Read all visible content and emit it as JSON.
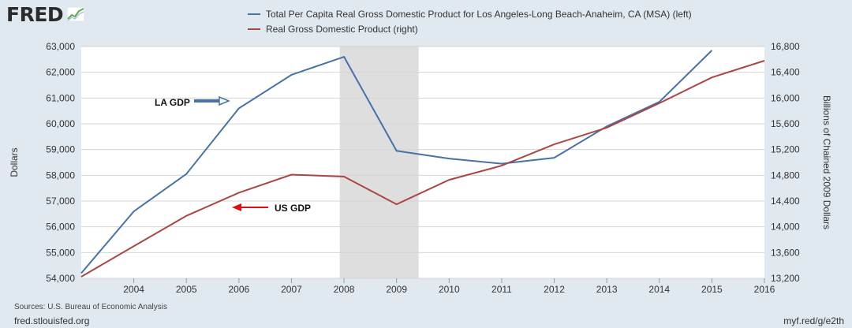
{
  "header": {
    "logo": "FRED",
    "legend": [
      {
        "label": "Total Per Capita Real Gross Domestic Product for Los Angeles-Long Beach-Anaheim, CA (MSA) (left)",
        "color": "#4572a7"
      },
      {
        "label": "Real Gross Domestic Product (right)",
        "color": "#aa4643"
      }
    ]
  },
  "footer": {
    "source": "Sources: U.S. Bureau of Economic Analysis",
    "site": "fred.stlouisfed.org",
    "short_url": "myf.red/g/e2th"
  },
  "chart_data": {
    "type": "line",
    "title": "",
    "x": [
      2003,
      2004,
      2005,
      2006,
      2007,
      2008,
      2009,
      2010,
      2011,
      2012,
      2013,
      2014,
      2015,
      2016
    ],
    "xlim": [
      2003,
      2016
    ],
    "x_ticks": [
      "2004",
      "2005",
      "2006",
      "2007",
      "2008",
      "2009",
      "2010",
      "2011",
      "2012",
      "2013",
      "2014",
      "2015",
      "2016"
    ],
    "xlabel": "",
    "ylabel_left": "Dollars",
    "ylabel_right": "Billions of Chained 2009 Dollars",
    "ylim_left": [
      54000,
      63000
    ],
    "ylim_right": [
      13200,
      16800
    ],
    "y_ticks_left": [
      "54,000",
      "55,000",
      "56,000",
      "57,000",
      "58,000",
      "59,000",
      "60,000",
      "61,000",
      "62,000",
      "63,000"
    ],
    "y_ticks_right": [
      "13,200",
      "13,600",
      "14,000",
      "14,400",
      "14,800",
      "15,200",
      "15,600",
      "16,000",
      "16,400",
      "16,800"
    ],
    "recession": {
      "from": 2007.92,
      "to": 2009.42
    },
    "series": [
      {
        "name": "Total Per Capita Real Gross Domestic Product for Los Angeles-Long Beach-Anaheim, CA (MSA)",
        "axis": "left",
        "color": "#4572a7",
        "x": [
          2003,
          2004,
          2005,
          2006,
          2007,
          2008,
          2009,
          2010,
          2011,
          2012,
          2013,
          2014,
          2015
        ],
        "values": [
          54200,
          56600,
          58050,
          60600,
          61900,
          62600,
          58950,
          58650,
          58450,
          58680,
          59900,
          60850,
          62850
        ]
      },
      {
        "name": "Real Gross Domestic Product",
        "axis": "right",
        "color": "#aa4643",
        "x": [
          2003,
          2004,
          2005,
          2006,
          2007,
          2008,
          2009,
          2010,
          2011,
          2012,
          2013,
          2014,
          2015,
          2016
        ],
        "values": [
          13225,
          13700,
          14170,
          14530,
          14810,
          14780,
          14350,
          14730,
          14950,
          15280,
          15540,
          15920,
          16320,
          16580
        ]
      }
    ],
    "annotations": [
      {
        "text": "LA GDP",
        "color": "#4572a7"
      },
      {
        "text": "US GDP",
        "color": "#dd1111"
      }
    ]
  }
}
